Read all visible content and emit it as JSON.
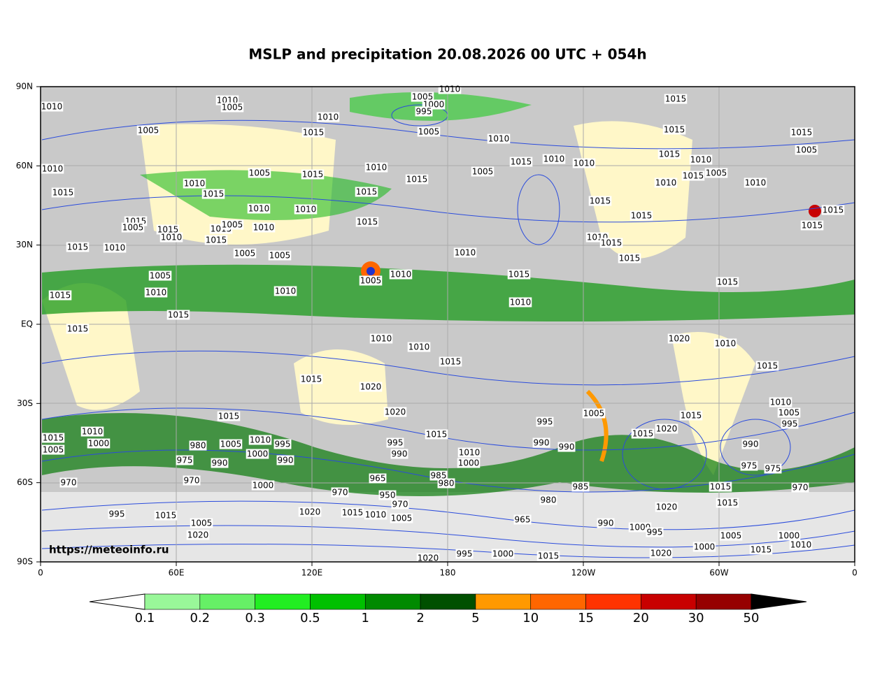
{
  "title": "MSLP and precipitation 20.08.2026 00 UTC + 054h",
  "watermark": "https://meteoinfo.ru",
  "map": {
    "lat_labels": [
      "90N",
      "60N",
      "30N",
      "EQ",
      "30S",
      "60S",
      "90S"
    ],
    "lon_labels": [
      "0",
      "60E",
      "120E",
      "180",
      "120W",
      "60W",
      "0"
    ],
    "isobar_labels": [
      1010,
      1010,
      1005,
      1010,
      1015,
      1005,
      1005,
      1010,
      1000,
      995,
      1005,
      1010,
      1015,
      1015,
      1015,
      1005,
      1010,
      1005,
      1015,
      1010,
      1015,
      1005,
      1015,
      1010,
      1010,
      1015,
      1010,
      1005,
      1015,
      1010,
      1010,
      1015,
      1010,
      1015,
      1015,
      1010,
      1010,
      1015,
      1015,
      1015,
      1015,
      1015,
      1005,
      1015,
      1010,
      1015,
      1005,
      1010,
      1015,
      1015,
      1015,
      1010,
      1005,
      1005,
      1010,
      1010,
      1015,
      1015,
      1015,
      1005,
      1010,
      1010,
      1005,
      1010,
      1015,
      1015,
      1010,
      1015,
      1015,
      1010,
      1010,
      1015,
      1020,
      1010,
      1015,
      1015,
      1020,
      1020,
      1015,
      1005,
      1010,
      1005,
      995,
      1015,
      1010,
      1015,
      1005,
      1000,
      980,
      1005,
      1010,
      995,
      1000,
      975,
      990,
      990,
      995,
      990,
      990,
      995,
      990,
      1015,
      1010,
      1000,
      1015,
      1020,
      990,
      975,
      975,
      970,
      970,
      1000,
      965,
      985,
      980,
      985,
      970,
      950,
      970,
      1015,
      1015,
      970,
      1020,
      1015,
      1010,
      1005,
      980,
      965,
      1020,
      990,
      1000,
      995,
      995,
      1015,
      1005,
      1020,
      1005,
      1000,
      1010,
      1000,
      1015,
      995,
      1000,
      1015,
      1020,
      1020
    ]
  },
  "colorbar": {
    "levels": [
      0.1,
      0.2,
      0.3,
      0.5,
      1,
      2,
      5,
      10,
      15,
      20,
      30,
      50
    ],
    "colors": [
      "#99f799",
      "#66f066",
      "#22ee22",
      "#00c000",
      "#008a00",
      "#005000",
      "#ff9900",
      "#ff6600",
      "#ff3300",
      "#c80000",
      "#960000"
    ],
    "under_color": "#ffffff",
    "over_color": "#000000"
  }
}
